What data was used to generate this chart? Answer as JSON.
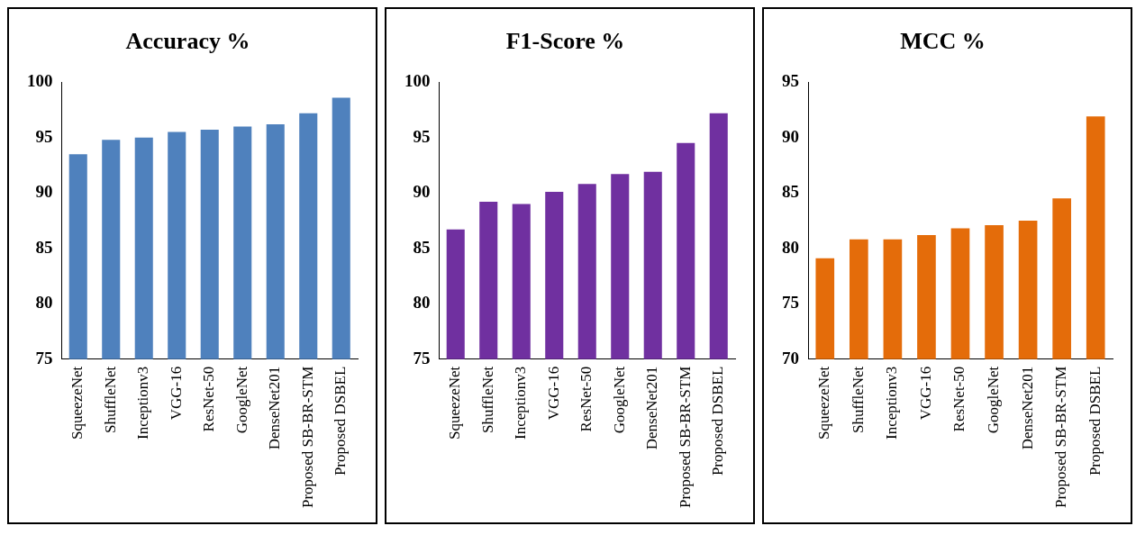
{
  "chart_data": [
    {
      "type": "bar",
      "title": "Accuracy %",
      "categories": [
        "SqueezeNet",
        "ShuffleNet",
        "Inceptionv3",
        "VGG-16",
        "ResNet-50",
        "GoogleNet",
        "DenseNet201",
        "Proposed SB-BR-STM",
        "Proposed DSBEL"
      ],
      "values": [
        93.5,
        94.8,
        95.0,
        95.5,
        95.7,
        96.0,
        96.2,
        97.2,
        98.6
      ],
      "colors": [
        "#4f81bd",
        "#4f81bd",
        "#4f81bd",
        "#4f81bd",
        "#4f81bd",
        "#4f81bd",
        "#4f81bd",
        "#4f81bd",
        "#4f81bd"
      ],
      "ylim": [
        75,
        100
      ],
      "yticks": [
        75,
        80,
        85,
        90,
        95,
        100
      ],
      "grid": false
    },
    {
      "type": "bar",
      "title": "F1-Score %",
      "categories": [
        "SqueezeNet",
        "ShuffleNet",
        "Inceptionv3",
        "VGG-16",
        "ResNet-50",
        "GoogleNet",
        "DenseNet201",
        "Proposed SB-BR-STM",
        "Proposed DSBEL"
      ],
      "values": [
        86.7,
        89.2,
        89.0,
        90.1,
        90.8,
        91.7,
        91.9,
        94.5,
        97.2
      ],
      "colors": [
        "#7030a0",
        "#7030a0",
        "#7030a0",
        "#7030a0",
        "#7030a0",
        "#7030a0",
        "#7030a0",
        "#7030a0",
        "#7030a0"
      ],
      "ylim": [
        75,
        100
      ],
      "yticks": [
        75,
        80,
        85,
        90,
        95,
        100
      ],
      "grid": false
    },
    {
      "type": "bar",
      "title": "MCC %",
      "categories": [
        "SqueezeNet",
        "ShuffleNet",
        "Inceptionv3",
        "VGG-16",
        "ResNet-50",
        "GoogleNet",
        "DenseNet201",
        "Proposed SB-BR-STM",
        "Proposed DSBEL"
      ],
      "values": [
        79.1,
        80.8,
        80.8,
        81.2,
        81.8,
        82.1,
        82.5,
        84.5,
        91.9
      ],
      "colors": [
        "#e46c0a",
        "#e46c0a",
        "#e46c0a",
        "#e46c0a",
        "#e46c0a",
        "#e46c0a",
        "#e46c0a",
        "#e46c0a",
        "#e46c0a"
      ],
      "ylim": [
        70,
        95
      ],
      "yticks": [
        70,
        75,
        80,
        85,
        90,
        95
      ],
      "grid": false
    }
  ]
}
